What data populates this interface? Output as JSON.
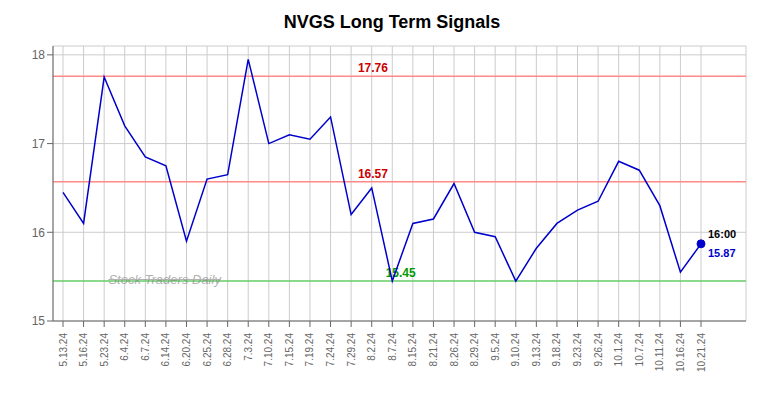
{
  "chart_data": {
    "type": "line",
    "title": "NVGS Long Term Signals",
    "categories": [
      "5.13.24",
      "5.16.24",
      "5.23.24",
      "6.4.24",
      "6.7.24",
      "6.14.24",
      "6.20.24",
      "6.25.24",
      "6.28.24",
      "7.3.24",
      "7.10.24",
      "7.15.24",
      "7.19.24",
      "7.24.24",
      "7.29.24",
      "8.2.24",
      "8.7.24",
      "8.15.24",
      "8.21.24",
      "8.26.24",
      "8.29.24",
      "9.5.24",
      "9.10.24",
      "9.13.24",
      "9.18.24",
      "9.23.24",
      "9.26.24",
      "10.1.24",
      "10.7.24",
      "10.11.24",
      "10.16.24",
      "10.21.24"
    ],
    "values": [
      16.45,
      16.1,
      17.75,
      17.2,
      16.85,
      16.75,
      15.9,
      16.6,
      16.65,
      17.95,
      17.0,
      17.1,
      17.05,
      17.3,
      16.2,
      16.5,
      15.45,
      16.1,
      16.15,
      16.55,
      16.0,
      15.95,
      15.45,
      15.82,
      16.1,
      16.25,
      16.35,
      16.8,
      16.7,
      16.3,
      15.55,
      15.87
    ],
    "color": "#0000cc",
    "ylim": [
      15.0,
      18.1
    ],
    "yticks": [
      15,
      16,
      17,
      18
    ],
    "grid": true,
    "reference_lines": [
      {
        "value": 17.76,
        "label": "17.76",
        "color": "#ff8888",
        "label_color": "#cc0000"
      },
      {
        "value": 16.57,
        "label": "16.57",
        "color": "#ff8888",
        "label_color": "#cc0000"
      },
      {
        "value": 15.45,
        "label": "15.45",
        "color": "#66cc66",
        "label_color": "#009900"
      }
    ],
    "last_point": {
      "value": 15.87,
      "label": "15.87",
      "time": "16:00"
    },
    "watermark": "Stock Traders Daily"
  }
}
